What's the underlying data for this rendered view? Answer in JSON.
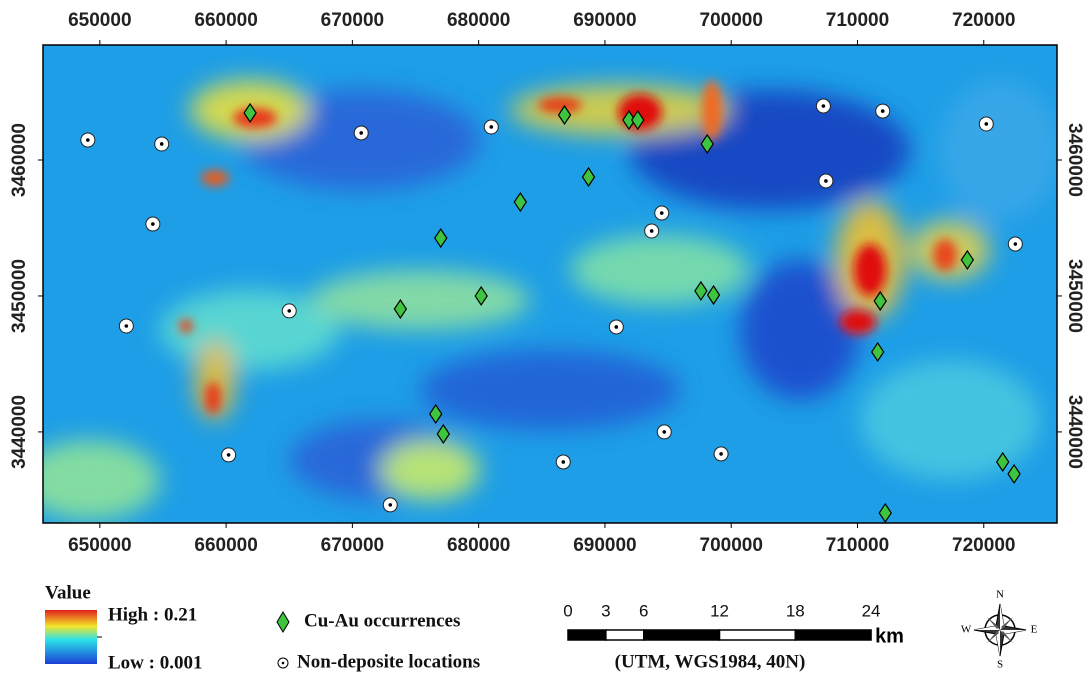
{
  "map": {
    "xlim": [
      645500,
      725800
    ],
    "ylim": [
      3433300,
      3468460
    ],
    "xticks": [
      650000,
      660000,
      670000,
      680000,
      690000,
      700000,
      710000,
      720000
    ],
    "yticks": [
      3440000,
      3450000,
      3460000
    ]
  },
  "legend": {
    "title": "Value",
    "high": "High : 0.21",
    "low": "Low : 0.001"
  },
  "points": {
    "occurrences": {
      "name": "Cu-Au occurrences",
      "x": [
        661900,
        686800,
        691900,
        692600,
        698100,
        688700,
        683300,
        677000,
        680200,
        673800,
        697600,
        698600,
        711800,
        718700,
        711600,
        676600,
        677200,
        721500,
        722400,
        712200
      ],
      "y": [
        3463460,
        3463310,
        3462940,
        3462940,
        3461180,
        3458750,
        3456910,
        3454260,
        3450000,
        3449040,
        3450370,
        3450070,
        3449630,
        3452650,
        3445880,
        3441320,
        3439850,
        3437790,
        3436910,
        3434040
      ]
    },
    "non_deposits": {
      "name": "Non-deposite locations",
      "x": [
        649050,
        654900,
        670700,
        681000,
        707300,
        712000,
        720200,
        707500,
        694500,
        693700,
        654200,
        722500,
        652100,
        665000,
        690900,
        660200,
        686700,
        694700,
        699200,
        673000
      ],
      "y": [
        3461470,
        3461180,
        3461990,
        3462430,
        3463970,
        3463600,
        3462650,
        3458460,
        3456100,
        3454780,
        3455290,
        3453820,
        3447790,
        3448900,
        3447720,
        3438310,
        3437790,
        3440000,
        3438380,
        3434630
      ]
    }
  },
  "scale_bar": {
    "ticks": [
      0,
      3,
      6,
      12,
      18,
      24
    ],
    "unit": "km",
    "note": "(UTM, WGS1984, 40N)"
  },
  "compass": {
    "n": "N",
    "s": "S",
    "e": "E",
    "w": "W"
  }
}
